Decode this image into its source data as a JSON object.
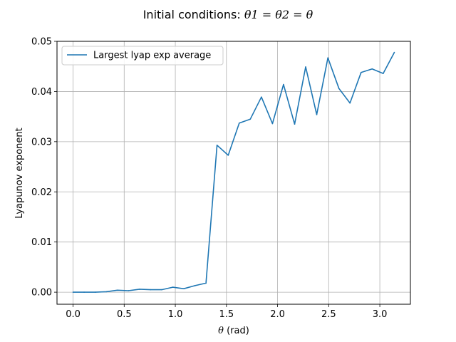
{
  "chart_data": {
    "type": "line",
    "title": {
      "prefix": "Initial conditions: ",
      "formula": "θ1 = θ2 = θ"
    },
    "xlabel": {
      "symbol": "θ",
      "unit": " (rad)"
    },
    "ylabel": "Lyapunov exponent",
    "xlim": [
      -0.157,
      3.299
    ],
    "ylim": [
      -0.0024,
      0.05
    ],
    "xticks": [
      0.0,
      0.5,
      1.0,
      1.5,
      2.0,
      2.5,
      3.0
    ],
    "xtick_labels": [
      "0.0",
      "0.5",
      "1.0",
      "1.5",
      "2.0",
      "2.5",
      "3.0"
    ],
    "yticks": [
      0.0,
      0.01,
      0.02,
      0.03,
      0.04,
      0.05
    ],
    "ytick_labels": [
      "0.00",
      "0.01",
      "0.02",
      "0.03",
      "0.04",
      "0.05"
    ],
    "grid": true,
    "legend_position": "top-left",
    "series": [
      {
        "name": "Largest lyap exp average",
        "color": "#1f77b4",
        "x": [
          0.0,
          0.108,
          0.217,
          0.325,
          0.433,
          0.542,
          0.65,
          0.758,
          0.867,
          0.975,
          1.083,
          1.192,
          1.3,
          1.408,
          1.517,
          1.625,
          1.733,
          1.842,
          1.95,
          2.058,
          2.167,
          2.275,
          2.383,
          2.492,
          2.6,
          2.708,
          2.817,
          2.925,
          3.033,
          3.142
        ],
        "y": [
          0.0,
          0.0,
          0.0,
          0.0001,
          0.0004,
          0.0003,
          0.0006,
          0.0005,
          0.0005,
          0.001,
          0.0007,
          0.0013,
          0.0018,
          0.0293,
          0.0273,
          0.0337,
          0.0345,
          0.0389,
          0.0336,
          0.0414,
          0.0335,
          0.0449,
          0.0354,
          0.0467,
          0.0406,
          0.0377,
          0.0438,
          0.0445,
          0.0436,
          0.0478
        ]
      }
    ]
  }
}
